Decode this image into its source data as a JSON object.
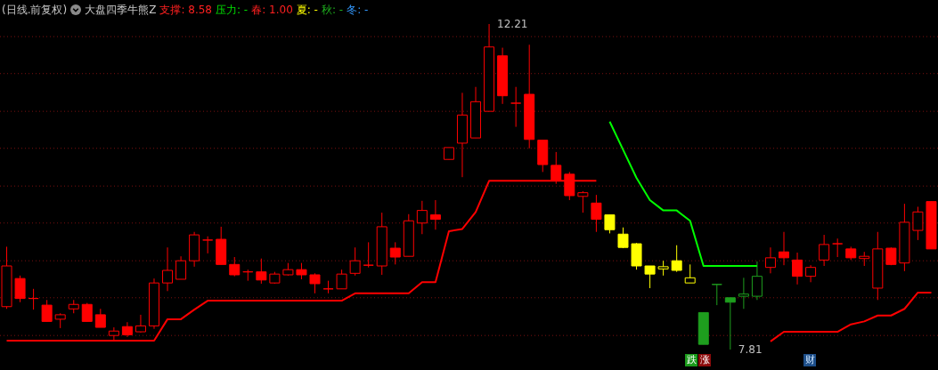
{
  "chart_data": {
    "type": "candlestick",
    "title": "(日线.前复权)",
    "subtitle": "大盘四季牛熊Z",
    "categories": [
      null,
      null,
      null,
      null,
      null,
      null,
      null,
      null,
      null,
      null,
      null,
      null,
      null,
      null,
      null,
      null,
      null,
      null,
      null,
      null,
      null,
      null,
      null,
      null,
      null,
      null,
      null,
      null,
      null,
      null,
      null,
      null,
      null,
      null,
      null,
      null,
      null,
      null,
      null,
      null,
      null,
      null,
      null,
      null,
      null,
      null,
      null,
      null,
      null,
      null,
      null,
      null,
      null,
      null,
      null,
      null,
      null,
      null,
      null,
      null,
      null,
      null,
      null,
      null,
      null,
      null,
      null,
      null,
      null,
      null
    ],
    "ohlc": [
      [
        8.39,
        9.2,
        8.36,
        8.94
      ],
      [
        8.77,
        8.81,
        8.45,
        8.5
      ],
      [
        8.5,
        8.63,
        8.35,
        8.5
      ],
      [
        8.41,
        8.48,
        8.19,
        8.19
      ],
      [
        8.22,
        8.3,
        8.1,
        8.28
      ],
      [
        8.36,
        8.48,
        8.3,
        8.42
      ],
      [
        8.42,
        8.44,
        8.19,
        8.19
      ],
      [
        8.28,
        8.36,
        8.11,
        8.11
      ],
      [
        8.0,
        8.11,
        7.92,
        8.06
      ],
      [
        8.12,
        8.18,
        7.98,
        8.01
      ],
      [
        8.05,
        8.28,
        8.04,
        8.13
      ],
      [
        8.13,
        8.77,
        8.09,
        8.71
      ],
      [
        8.71,
        9.19,
        8.6,
        8.88
      ],
      [
        8.76,
        9.07,
        8.76,
        9.01
      ],
      [
        9.01,
        9.4,
        8.93,
        9.36
      ],
      [
        9.29,
        9.34,
        9.11,
        9.29
      ],
      [
        9.3,
        9.47,
        8.96,
        8.96
      ],
      [
        8.96,
        9.06,
        8.8,
        8.82
      ],
      [
        8.86,
        8.89,
        8.74,
        8.86
      ],
      [
        8.86,
        9.04,
        8.7,
        8.75
      ],
      [
        8.71,
        8.86,
        8.7,
        8.83
      ],
      [
        8.82,
        8.98,
        8.81,
        8.89
      ],
      [
        8.89,
        8.98,
        8.76,
        8.82
      ],
      [
        8.82,
        8.84,
        8.57,
        8.7
      ],
      [
        8.63,
        8.74,
        8.57,
        8.63
      ],
      [
        8.63,
        8.89,
        8.63,
        8.83
      ],
      [
        8.84,
        9.19,
        8.81,
        9.01
      ],
      [
        8.95,
        9.26,
        8.92,
        8.95
      ],
      [
        8.94,
        9.66,
        8.82,
        9.47
      ],
      [
        9.18,
        9.26,
        8.96,
        9.06
      ],
      [
        9.07,
        9.64,
        9.07,
        9.55
      ],
      [
        9.52,
        9.82,
        9.37,
        9.69
      ],
      [
        9.63,
        9.83,
        9.43,
        9.57
      ],
      [
        10.38,
        10.54,
        10.38,
        10.54
      ],
      [
        10.6,
        11.28,
        10.14,
        10.98
      ],
      [
        10.67,
        11.36,
        10.67,
        11.16
      ],
      [
        11.03,
        12.21,
        11.03,
        11.9
      ],
      [
        11.78,
        11.89,
        11.13,
        11.24
      ],
      [
        11.14,
        11.36,
        10.82,
        11.14
      ],
      [
        11.26,
        11.93,
        10.53,
        10.65
      ],
      [
        10.64,
        10.64,
        10.21,
        10.31
      ],
      [
        10.3,
        10.48,
        10.05,
        10.09
      ],
      [
        10.18,
        10.21,
        9.83,
        9.89
      ],
      [
        9.88,
        9.95,
        9.66,
        9.93
      ],
      [
        9.79,
        9.9,
        9.4,
        9.57
      ],
      [
        9.63,
        9.63,
        9.38,
        9.43
      ],
      [
        9.37,
        9.46,
        9.18,
        9.19
      ],
      [
        9.24,
        9.25,
        8.89,
        8.94
      ],
      [
        8.94,
        8.94,
        8.64,
        8.83
      ],
      [
        8.9,
        9.01,
        8.81,
        8.93
      ],
      [
        9.01,
        9.22,
        8.86,
        8.88
      ],
      [
        8.71,
        8.96,
        8.71,
        8.78
      ],
      [
        8.31,
        8.31,
        7.88,
        7.88
      ],
      [
        8.69,
        8.69,
        8.41,
        8.69
      ],
      [
        8.51,
        8.51,
        7.81,
        8.45
      ],
      [
        8.53,
        8.78,
        8.36,
        8.56
      ],
      [
        8.53,
        9.0,
        8.48,
        8.8
      ],
      [
        8.92,
        9.19,
        8.84,
        9.05
      ],
      [
        9.13,
        9.4,
        8.95,
        9.05
      ],
      [
        9.02,
        9.12,
        8.69,
        8.8
      ],
      [
        8.8,
        8.95,
        8.72,
        8.92
      ],
      [
        9.02,
        9.36,
        8.94,
        9.23
      ],
      [
        9.24,
        9.31,
        9.06,
        9.24
      ],
      [
        9.17,
        9.2,
        9.02,
        9.05
      ],
      [
        9.04,
        9.13,
        8.94,
        9.07
      ],
      [
        8.64,
        9.4,
        8.48,
        9.17
      ],
      [
        9.18,
        9.19,
        8.95,
        8.96
      ],
      [
        8.98,
        9.78,
        8.87,
        9.53
      ],
      [
        9.42,
        9.74,
        9.29,
        9.67
      ],
      [
        9.81,
        9.81,
        9.17,
        9.17
      ]
    ],
    "colors": [
      "#ff0000",
      "#ff0000",
      "#ff0000",
      "#ff0000",
      "#ff0000",
      "#ff0000",
      "#ff0000",
      "#ff0000",
      "#ff0000",
      "#ff0000",
      "#ff0000",
      "#ff0000",
      "#ff0000",
      "#ff0000",
      "#ff0000",
      "#ff0000",
      "#ff0000",
      "#ff0000",
      "#ff0000",
      "#ff0000",
      "#ff0000",
      "#ff0000",
      "#ff0000",
      "#ff0000",
      "#ff0000",
      "#ff0000",
      "#ff0000",
      "#ff0000",
      "#ff0000",
      "#ff0000",
      "#ff0000",
      "#ff0000",
      "#ff0000",
      "#ff0000",
      "#ff0000",
      "#ff0000",
      "#ff0000",
      "#ff0000",
      "#ff0000",
      "#ff0000",
      "#ff0000",
      "#ff0000",
      "#ff0000",
      "#ff0000",
      "#ff0000",
      "#ffff00",
      "#ffff00",
      "#ffff00",
      "#ffff00",
      "#ffff00",
      "#ffff00",
      "#ffff00",
      "#1e9e1e",
      "#1e9e1e",
      "#1e9e1e",
      "#1e9e1e",
      "#1e9e1e",
      "#ff0000",
      "#ff0000",
      "#ff0000",
      "#ff0000",
      "#ff0000",
      "#ff0000",
      "#ff0000",
      "#ff0000",
      "#ff0000",
      "#ff0000",
      "#ff0000",
      "#ff0000",
      "#ff0000"
    ],
    "series": [
      {
        "type": "line",
        "color": "#ff0000",
        "values": [
          7.93,
          7.93,
          7.93,
          7.93,
          7.93,
          7.93,
          7.93,
          7.93,
          7.93,
          7.93,
          7.93,
          7.93,
          8.22,
          8.22,
          8.35,
          8.47,
          8.47,
          8.47,
          8.47,
          8.47,
          8.47,
          8.47,
          8.47,
          8.47,
          8.47,
          8.47,
          8.57,
          8.57,
          8.57,
          8.57,
          8.57,
          8.72,
          8.72,
          9.41,
          9.44,
          9.67,
          10.09,
          10.09,
          10.09,
          10.09,
          10.09,
          10.09,
          10.09,
          10.09,
          10.09,
          null,
          null,
          null,
          null,
          null,
          null,
          null,
          null,
          null,
          null,
          null,
          null,
          7.92,
          8.05,
          8.05,
          8.05,
          8.05,
          8.05,
          8.15,
          8.19,
          8.27,
          8.27,
          8.36,
          8.58,
          8.58
        ]
      },
      {
        "type": "line",
        "color": "#00ff00",
        "values": [
          null,
          null,
          null,
          null,
          null,
          null,
          null,
          null,
          null,
          null,
          null,
          null,
          null,
          null,
          null,
          null,
          null,
          null,
          null,
          null,
          null,
          null,
          null,
          null,
          null,
          null,
          null,
          null,
          null,
          null,
          null,
          null,
          null,
          null,
          null,
          null,
          null,
          null,
          null,
          null,
          null,
          null,
          null,
          null,
          null,
          10.89,
          10.51,
          10.13,
          9.83,
          9.69,
          9.69,
          9.55,
          8.94,
          8.94,
          8.94,
          8.94,
          8.94,
          null,
          null,
          null,
          null,
          null,
          null,
          null,
          null,
          null,
          null,
          null,
          null,
          null
        ]
      }
    ],
    "yticks": [
      {
        "value": 8.0,
        "label": null
      },
      {
        "value": 8.51,
        "label": null
      },
      {
        "value": 9.01,
        "label": null
      },
      {
        "value": 9.52,
        "label": null
      },
      {
        "value": 10.02,
        "label": null
      },
      {
        "value": 10.53,
        "label": null
      },
      {
        "value": 11.03,
        "label": null
      },
      {
        "value": 11.54,
        "label": null
      },
      {
        "value": 12.04,
        "label": null
      }
    ],
    "grid": "y",
    "annotations": [
      "支撑: 8.58",
      "压力: -",
      "春: 1.00",
      "夏: -",
      "秋: -",
      "冬: -",
      "12.21",
      "7.81",
      "跌",
      "涨",
      "财"
    ]
  }
}
